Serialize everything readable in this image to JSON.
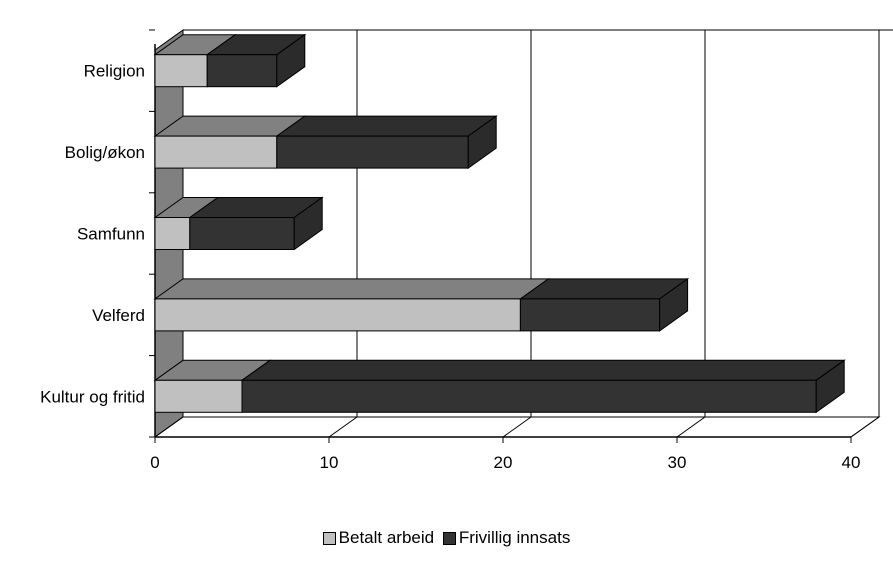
{
  "chart_data": {
    "type": "bar",
    "orientation": "horizontal",
    "stacked": true,
    "three_d": true,
    "categories": [
      "Kultur og fritid",
      "Velferd",
      "Samfunn",
      "Bolig/økon",
      "Religion"
    ],
    "series": [
      {
        "name": "Betalt arbeid",
        "values": [
          5,
          21,
          2,
          7,
          3
        ],
        "color": "#c0c0c0"
      },
      {
        "name": "Frivillig innsats",
        "values": [
          33,
          8,
          6,
          11,
          4
        ],
        "color": "#333333"
      }
    ],
    "x_ticks": [
      "0",
      "10",
      "20",
      "30",
      "40"
    ],
    "xlim": [
      0,
      40
    ],
    "grid": true,
    "legend_position": "bottom",
    "title": "",
    "xlabel": "",
    "ylabel": ""
  }
}
